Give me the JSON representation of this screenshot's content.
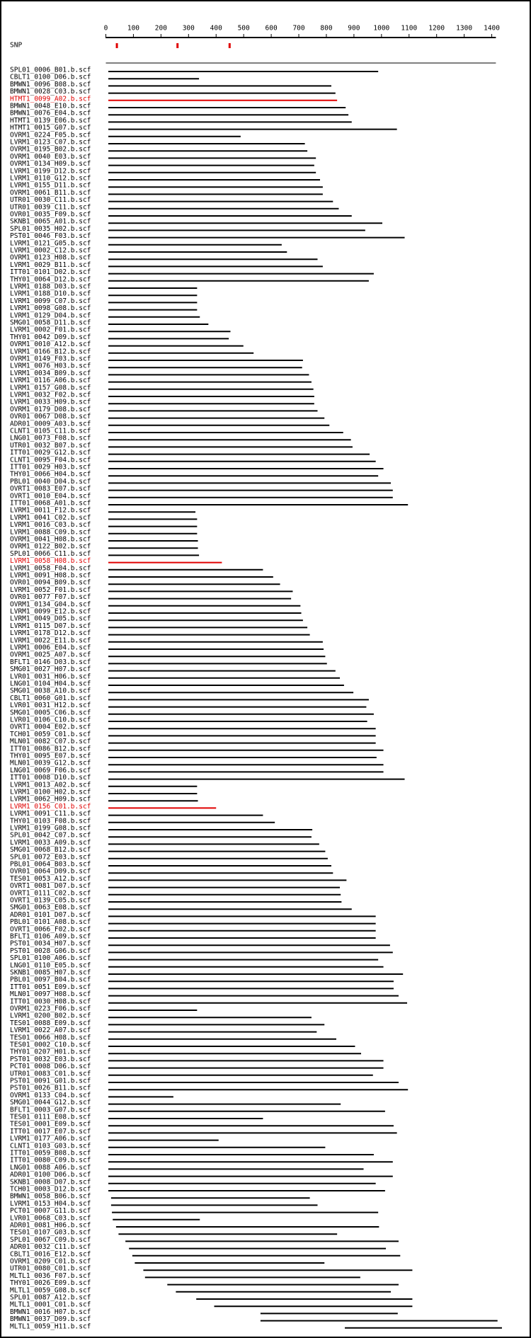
{
  "chart_data": {
    "type": "alignment",
    "xlim": [
      0,
      1415
    ],
    "xticks": [
      0,
      100,
      200,
      300,
      400,
      500,
      600,
      700,
      800,
      900,
      1000,
      1100,
      1200,
      1300,
      1400
    ],
    "color": "#000000",
    "snp_label": "SNP",
    "snp_color": "#e00000",
    "snps": [
      40,
      260,
      449
    ],
    "reference": {
      "start": 0,
      "end": 1415
    },
    "reads": [
      {
        "name": "SPL01_0006_B01.b.scf",
        "start": 9,
        "end": 988
      },
      {
        "name": "CBLT1_0100_D06.b.scf",
        "start": 9,
        "end": 338
      },
      {
        "name": "BMWN1_0096_B08.b.scf",
        "start": 9,
        "end": 818
      },
      {
        "name": "BMWN1_0028_C03.b.scf",
        "start": 9,
        "end": 833
      },
      {
        "name": "HTMT1_0099_A02.b.scf",
        "start": 9,
        "end": 839,
        "color": "#e00000"
      },
      {
        "name": "BMWN1_0048_E10.b.scf",
        "start": 9,
        "end": 870
      },
      {
        "name": "BMWN1_0076_E04.b.scf",
        "start": 9,
        "end": 880
      },
      {
        "name": "HTMT1_0139_E06.b.scf",
        "start": 9,
        "end": 892
      },
      {
        "name": "HTMT1_0015_G07.b.scf",
        "start": 9,
        "end": 1056
      },
      {
        "name": "OVRM1_0224_F05.b.scf",
        "start": 9,
        "end": 489
      },
      {
        "name": "LVRM1_0123_C07.b.scf",
        "start": 9,
        "end": 722
      },
      {
        "name": "OVRM1_0195_B02.b.scf",
        "start": 9,
        "end": 731
      },
      {
        "name": "OVRM1_0040_E03.b.scf",
        "start": 9,
        "end": 762
      },
      {
        "name": "OVRM1_0134_H09.b.scf",
        "start": 9,
        "end": 756
      },
      {
        "name": "LVRM1_0199_D12.b.scf",
        "start": 9,
        "end": 762
      },
      {
        "name": "LVRM1_0110_G12.b.scf",
        "start": 9,
        "end": 777
      },
      {
        "name": "LVRM1_0155_D11.b.scf",
        "start": 9,
        "end": 787
      },
      {
        "name": "OVRM1_0061_B11.b.scf",
        "start": 9,
        "end": 787
      },
      {
        "name": "UTR01_0030_C11.b.scf",
        "start": 9,
        "end": 824
      },
      {
        "name": "UTR01_0039_C11.b.scf",
        "start": 9,
        "end": 845
      },
      {
        "name": "OVR01_0035_F09.b.scf",
        "start": 9,
        "end": 892
      },
      {
        "name": "SKNB1_0065_A01.b.scf",
        "start": 9,
        "end": 1003
      },
      {
        "name": "SPL01_0035_H02.b.scf",
        "start": 9,
        "end": 941
      },
      {
        "name": "PST01_0046_F03.b.scf",
        "start": 9,
        "end": 1084
      },
      {
        "name": "LVRM1_0121_G05.b.scf",
        "start": 9,
        "end": 638
      },
      {
        "name": "LVRM1_0002_C12.b.scf",
        "start": 9,
        "end": 657
      },
      {
        "name": "OVRM1_0123_H08.b.scf",
        "start": 9,
        "end": 768
      },
      {
        "name": "LVRM1_0029_B11.b.scf",
        "start": 9,
        "end": 787
      },
      {
        "name": "ITT01_0101_D02.b.scf",
        "start": 9,
        "end": 972
      },
      {
        "name": "THY01_0064_D12.b.scf",
        "start": 9,
        "end": 954
      },
      {
        "name": "LVRM1_0188_D03.b.scf",
        "start": 9,
        "end": 331
      },
      {
        "name": "LVRM1_0188_D10.b.scf",
        "start": 9,
        "end": 331
      },
      {
        "name": "LVRM1_0099_C07.b.scf",
        "start": 9,
        "end": 331
      },
      {
        "name": "LVRM1_0098_G08.b.scf",
        "start": 9,
        "end": 331
      },
      {
        "name": "LVRM1_0129_D04.b.scf",
        "start": 9,
        "end": 341
      },
      {
        "name": "SMG01_0058_D11.b.scf",
        "start": 9,
        "end": 372
      },
      {
        "name": "LVRM1_0002_F01.b.scf",
        "start": 9,
        "end": 452
      },
      {
        "name": "THY01_0042_D09.b.scf",
        "start": 9,
        "end": 446
      },
      {
        "name": "OVRM1_0010_A12.b.scf",
        "start": 9,
        "end": 499
      },
      {
        "name": "LVRM1_0166_B12.b.scf",
        "start": 9,
        "end": 536
      },
      {
        "name": "OVRM1_0149_F03.b.scf",
        "start": 9,
        "end": 715
      },
      {
        "name": "LVRM1_0076_H03.b.scf",
        "start": 9,
        "end": 712
      },
      {
        "name": "LVRM1_0034_B09.b.scf",
        "start": 9,
        "end": 737
      },
      {
        "name": "LVRM1_0116_A06.b.scf",
        "start": 9,
        "end": 746
      },
      {
        "name": "LVRM1_0157_G08.b.scf",
        "start": 9,
        "end": 753
      },
      {
        "name": "LVRM1_0032_F02.b.scf",
        "start": 9,
        "end": 756
      },
      {
        "name": "LVRM1_0033_H09.b.scf",
        "start": 9,
        "end": 756
      },
      {
        "name": "OVRM1_0179_D08.b.scf",
        "start": 9,
        "end": 768
      },
      {
        "name": "OVR01_0067_D08.b.scf",
        "start": 9,
        "end": 793
      },
      {
        "name": "ADR01_0009_A03.b.scf",
        "start": 9,
        "end": 811
      },
      {
        "name": "CLNT1_0105_C11.b.scf",
        "start": 9,
        "end": 861
      },
      {
        "name": "LNG01_0073_F08.b.scf",
        "start": 9,
        "end": 889
      },
      {
        "name": "UTR01_0032_B07.b.scf",
        "start": 9,
        "end": 895
      },
      {
        "name": "ITT01_0029_G12.b.scf",
        "start": 9,
        "end": 957
      },
      {
        "name": "CLNT1_0095_F04.b.scf",
        "start": 9,
        "end": 979
      },
      {
        "name": "ITT01_0029_H03.b.scf",
        "start": 9,
        "end": 1007
      },
      {
        "name": "THY01_0066_H04.b.scf",
        "start": 9,
        "end": 988
      },
      {
        "name": "PBL01_0040_D04.b.scf",
        "start": 9,
        "end": 1034
      },
      {
        "name": "OVRT1_0083_E07.b.scf",
        "start": 9,
        "end": 1041
      },
      {
        "name": "OVRT1_0010_E04.b.scf",
        "start": 9,
        "end": 1041
      },
      {
        "name": "ITT01_0068_A01.b.scf",
        "start": 9,
        "end": 1096
      },
      {
        "name": "LVRM1_0011_F12.b.scf",
        "start": 9,
        "end": 325
      },
      {
        "name": "LVRM1_0041_C02.b.scf",
        "start": 9,
        "end": 331
      },
      {
        "name": "LVRM1_0016_C03.b.scf",
        "start": 9,
        "end": 331
      },
      {
        "name": "LVRM1_0088_C09.b.scf",
        "start": 9,
        "end": 331
      },
      {
        "name": "OVRM1_0041_H08.b.scf",
        "start": 9,
        "end": 334
      },
      {
        "name": "OVRM1_0122_B02.b.scf",
        "start": 9,
        "end": 334
      },
      {
        "name": "SPL01_0066_C11.b.scf",
        "start": 9,
        "end": 338
      },
      {
        "name": "LVRM1_0058_H08.b.scf",
        "start": 9,
        "end": 421,
        "color": "#e00000"
      },
      {
        "name": "LVRM1_0058_F04.b.scf",
        "start": 9,
        "end": 570
      },
      {
        "name": "LVRM1_0091_H08.b.scf",
        "start": 9,
        "end": 607
      },
      {
        "name": "OVR01_0094_B09.b.scf",
        "start": 9,
        "end": 632
      },
      {
        "name": "LVRM1_0052_F01.b.scf",
        "start": 9,
        "end": 678
      },
      {
        "name": "OVR01_0077_F07.b.scf",
        "start": 9,
        "end": 672
      },
      {
        "name": "OVRM1_0134_G04.b.scf",
        "start": 9,
        "end": 706
      },
      {
        "name": "LVRM1_0099_E12.b.scf",
        "start": 9,
        "end": 709
      },
      {
        "name": "LVRM1_0049_D05.b.scf",
        "start": 9,
        "end": 715
      },
      {
        "name": "LVRM1_0115_D07.b.scf",
        "start": 9,
        "end": 731
      },
      {
        "name": "LVRM1_0178_D12.b.scf",
        "start": 9,
        "end": 740
      },
      {
        "name": "LVRM1_0022_E11.b.scf",
        "start": 9,
        "end": 787
      },
      {
        "name": "LVRM1_0006_E04.b.scf",
        "start": 9,
        "end": 790
      },
      {
        "name": "OVRM1_0025_A07.b.scf",
        "start": 9,
        "end": 796
      },
      {
        "name": "BFLT1_0146_D03.b.scf",
        "start": 9,
        "end": 802
      },
      {
        "name": "SMG01_0027_H07.b.scf",
        "start": 9,
        "end": 833
      },
      {
        "name": "LVR01_0031_H06.b.scf",
        "start": 9,
        "end": 849
      },
      {
        "name": "LNG01_0104_H04.b.scf",
        "start": 9,
        "end": 864
      },
      {
        "name": "SMG01_0038_A10.b.scf",
        "start": 9,
        "end": 898
      },
      {
        "name": "CBLT1_0060_G01.b.scf",
        "start": 9,
        "end": 954
      },
      {
        "name": "LVR01_0031_H12.b.scf",
        "start": 9,
        "end": 945
      },
      {
        "name": "SMG01_0005_C06.b.scf",
        "start": 9,
        "end": 972
      },
      {
        "name": "LVR01_0106_C10.b.scf",
        "start": 9,
        "end": 948
      },
      {
        "name": "OVRT1_0004_E02.b.scf",
        "start": 9,
        "end": 979
      },
      {
        "name": "TCH01_0059_C01.b.scf",
        "start": 9,
        "end": 979
      },
      {
        "name": "MLN01_0082_C07.b.scf",
        "start": 9,
        "end": 979
      },
      {
        "name": "ITT01_0086_B12.b.scf",
        "start": 9,
        "end": 1007
      },
      {
        "name": "THY01_0095_E07.b.scf",
        "start": 9,
        "end": 982
      },
      {
        "name": "MLN01_0039_G12.b.scf",
        "start": 9,
        "end": 1007
      },
      {
        "name": "LNG01_0069_F06.b.scf",
        "start": 9,
        "end": 1007
      },
      {
        "name": "ITT01_0008_D10.b.scf",
        "start": 9,
        "end": 1084
      },
      {
        "name": "LVRM1_0013_A02.b.scf",
        "start": 9,
        "end": 331
      },
      {
        "name": "LVRM1_0100_H02.b.scf",
        "start": 9,
        "end": 331
      },
      {
        "name": "LVRM1_0062_H09.b.scf",
        "start": 9,
        "end": 334
      },
      {
        "name": "LVRM1_0156_C01.b.scf",
        "start": 9,
        "end": 400,
        "color": "#e00000"
      },
      {
        "name": "LVRM1_0091_C11.b.scf",
        "start": 9,
        "end": 570
      },
      {
        "name": "THY01_0103_F08.b.scf",
        "start": 9,
        "end": 613
      },
      {
        "name": "LVRM1_0199_G08.b.scf",
        "start": 9,
        "end": 749
      },
      {
        "name": "SPL01_0042_C07.b.scf",
        "start": 9,
        "end": 746
      },
      {
        "name": "LVRM1_0033_A09.b.scf",
        "start": 9,
        "end": 774
      },
      {
        "name": "SMG01_0068_B12.b.scf",
        "start": 9,
        "end": 796
      },
      {
        "name": "SPL01_0072_E03.b.scf",
        "start": 9,
        "end": 805
      },
      {
        "name": "PBL01_0064_B03.b.scf",
        "start": 9,
        "end": 818
      },
      {
        "name": "OVR01_0064_D09.b.scf",
        "start": 9,
        "end": 824
      },
      {
        "name": "TES01_0053_A12.b.scf",
        "start": 9,
        "end": 873
      },
      {
        "name": "OVRT1_0081_D07.b.scf",
        "start": 9,
        "end": 849
      },
      {
        "name": "OVRT1_0111_C02.b.scf",
        "start": 9,
        "end": 852
      },
      {
        "name": "OVRT1_0139_C05.b.scf",
        "start": 9,
        "end": 855
      },
      {
        "name": "SMG01_0063_E08.b.scf",
        "start": 9,
        "end": 892
      },
      {
        "name": "ADR01_0101_D07.b.scf",
        "start": 9,
        "end": 979
      },
      {
        "name": "PBL01_0101_A08.b.scf",
        "start": 9,
        "end": 979
      },
      {
        "name": "OVRT1_0066_F02.b.scf",
        "start": 9,
        "end": 979
      },
      {
        "name": "BFLT1_0106_A09.b.scf",
        "start": 9,
        "end": 979
      },
      {
        "name": "PST01_0034_H07.b.scf",
        "start": 9,
        "end": 1031
      },
      {
        "name": "PST01_0028_G06.b.scf",
        "start": 9,
        "end": 1041
      },
      {
        "name": "SPL01_0100_A06.b.scf",
        "start": 9,
        "end": 988
      },
      {
        "name": "LNG01_0110_E05.b.scf",
        "start": 9,
        "end": 1007
      },
      {
        "name": "SKNB1_0085_H07.b.scf",
        "start": 9,
        "end": 1078
      },
      {
        "name": "PBL01_0097_B04.b.scf",
        "start": 9,
        "end": 1044
      },
      {
        "name": "ITT01_0051_E09.b.scf",
        "start": 9,
        "end": 1044
      },
      {
        "name": "MLN01_0097_H08.b.scf",
        "start": 9,
        "end": 1062
      },
      {
        "name": "ITT01_0030_H08.b.scf",
        "start": 9,
        "end": 1093
      },
      {
        "name": "OVRM1_0223_F06.b.scf",
        "start": 9,
        "end": 331
      },
      {
        "name": "LVRM1_0200_B02.b.scf",
        "start": 9,
        "end": 746
      },
      {
        "name": "TES01_0088_E09.b.scf",
        "start": 9,
        "end": 793
      },
      {
        "name": "LVRM1_0022_A07.b.scf",
        "start": 9,
        "end": 765
      },
      {
        "name": "TES01_0066_H08.b.scf",
        "start": 9,
        "end": 836
      },
      {
        "name": "TES01_0002_C10.b.scf",
        "start": 9,
        "end": 904
      },
      {
        "name": "THY01_0207_H01.b.scf",
        "start": 9,
        "end": 926
      },
      {
        "name": "PST01_0032_E03.b.scf",
        "start": 9,
        "end": 1007
      },
      {
        "name": "PCT01_0008_D06.b.scf",
        "start": 9,
        "end": 1007
      },
      {
        "name": "UTR01_0083_C01.b.scf",
        "start": 9,
        "end": 969
      },
      {
        "name": "PST01_0091_G01.b.scf",
        "start": 9,
        "end": 1062
      },
      {
        "name": "PST01_0026_B11.b.scf",
        "start": 9,
        "end": 1096
      },
      {
        "name": "OVRM1_0133_C04.b.scf",
        "start": 9,
        "end": 245
      },
      {
        "name": "SMG01_0044_G12.b.scf",
        "start": 9,
        "end": 852
      },
      {
        "name": "BFLT1_0003_G07.b.scf",
        "start": 9,
        "end": 1013
      },
      {
        "name": "TES01_0111_E08.b.scf",
        "start": 9,
        "end": 570
      },
      {
        "name": "TES01_0001_E09.b.scf",
        "start": 9,
        "end": 1044
      },
      {
        "name": "ITT01_0017_E07.b.scf",
        "start": 9,
        "end": 1056
      },
      {
        "name": "LVRM1_0177_A06.b.scf",
        "start": 9,
        "end": 409
      },
      {
        "name": "CLNT1_0103_G03.b.scf",
        "start": 9,
        "end": 796
      },
      {
        "name": "ITT01_0059_B08.b.scf",
        "start": 9,
        "end": 972
      },
      {
        "name": "ITT01_0080_C09.b.scf",
        "start": 9,
        "end": 1041
      },
      {
        "name": "LNG01_0088_A06.b.scf",
        "start": 9,
        "end": 935
      },
      {
        "name": "ADR01_0100_D06.b.scf",
        "start": 9,
        "end": 1041
      },
      {
        "name": "SKNB1_0008_D07.b.scf",
        "start": 9,
        "end": 979
      },
      {
        "name": "TCH01_0003_D12.b.scf",
        "start": 9,
        "end": 1013
      },
      {
        "name": "BMWN1_0058_B06.b.scf",
        "start": 19,
        "end": 740
      },
      {
        "name": "LVRM1_0153_H04.b.scf",
        "start": 19,
        "end": 768
      },
      {
        "name": "PCT01_0007_G11.b.scf",
        "start": 22,
        "end": 988
      },
      {
        "name": "LVR01_0068_C03.b.scf",
        "start": 25,
        "end": 341
      },
      {
        "name": "ADR01_0081_H06.b.scf",
        "start": 37,
        "end": 991
      },
      {
        "name": "TES01_0107_G03.b.scf",
        "start": 46,
        "end": 839
      },
      {
        "name": "SPL01_0067_C09.b.scf",
        "start": 71,
        "end": 1062
      },
      {
        "name": "ADR01_0032_C11.b.scf",
        "start": 84,
        "end": 1016
      },
      {
        "name": "CBLT1_0016_E12.b.scf",
        "start": 96,
        "end": 1068
      },
      {
        "name": "OVRM1_0209_C01.b.scf",
        "start": 105,
        "end": 793
      },
      {
        "name": "UTR01_0080_C01.b.scf",
        "start": 136,
        "end": 1112
      },
      {
        "name": "MLTL1_0036_F07.b.scf",
        "start": 142,
        "end": 923
      },
      {
        "name": "THY01_0026_E09.b.scf",
        "start": 223,
        "end": 1062
      },
      {
        "name": "MLTL1_0059_G08.b.scf",
        "start": 254,
        "end": 1034
      },
      {
        "name": "SPL01_0087_A12.b.scf",
        "start": 328,
        "end": 1112
      },
      {
        "name": "MLTL1_0001_C01.b.scf",
        "start": 393,
        "end": 1112
      },
      {
        "name": "BMWN1_0016_H07.b.scf",
        "start": 561,
        "end": 1059
      },
      {
        "name": "BMWN1_0037_D09.b.scf",
        "start": 561,
        "end": 1421
      },
      {
        "name": "MLTL1_0059_H11.b.scf",
        "start": 867,
        "end": 1437
      }
    ]
  }
}
